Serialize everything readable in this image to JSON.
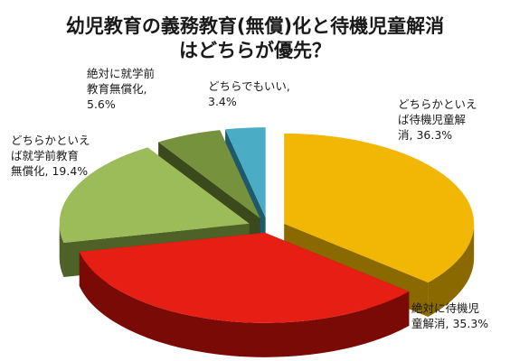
{
  "chart_data": {
    "type": "pie",
    "title_lines": [
      "幼児教育の義務教育(無償)化と待機児童解消",
      "はどちらが優先？"
    ],
    "slices": [
      {
        "category": "どちらかといえば待機児童解消",
        "value": 36.3,
        "color": "#f2b705",
        "side": "#8a6a00",
        "label_lines": [
          "どちらかといえ",
          "ば待機児童解",
          "消, 36.3%"
        ]
      },
      {
        "category": "絶対に待機児童解消",
        "value": 35.3,
        "color": "#e61e14",
        "side": "#7a0a05",
        "label_lines": [
          "絶対に待機児",
          "童解消, 35.3%"
        ]
      },
      {
        "category": "どちらかといえば就学前教育無償化",
        "value": 19.4,
        "color": "#9cbb59",
        "side": "#4e6127",
        "label_lines": [
          "どちらかといえ",
          "ば就学前教育",
          "無償化, 19.4%"
        ]
      },
      {
        "category": "絶対に就学前教育無償化",
        "value": 5.6,
        "color": "#76923c",
        "side": "#3b4a1c",
        "label_lines": [
          "絶対に就学前",
          "教育無償化,",
          "5.6%"
        ]
      },
      {
        "category": "どちらでもいい",
        "value": 3.4,
        "color": "#4bacc6",
        "side": "#1d5a6b",
        "label_lines": [
          "どちらでもいい,",
          "3.4%"
        ]
      }
    ]
  }
}
